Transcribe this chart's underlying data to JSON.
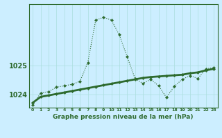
{
  "title": "Graphe pression niveau de la mer (hPa)",
  "background_color": "#cceeff",
  "line_color": "#2d6a2d",
  "ylabel_ticks": [
    1024,
    1025
  ],
  "xlim": [
    -0.5,
    23.5
  ],
  "ylim": [
    1023.55,
    1027.1
  ],
  "x": [
    0,
    1,
    2,
    3,
    4,
    5,
    6,
    7,
    8,
    9,
    10,
    11,
    12,
    13,
    14,
    15,
    16,
    17,
    18,
    19,
    20,
    21,
    22,
    23
  ],
  "y_main": [
    1023.65,
    1024.05,
    1024.1,
    1024.25,
    1024.3,
    1024.35,
    1024.45,
    1025.1,
    1026.55,
    1026.65,
    1026.55,
    1026.05,
    1025.3,
    1024.55,
    1024.38,
    1024.52,
    1024.3,
    1023.9,
    1024.28,
    1024.52,
    1024.65,
    1024.55,
    1024.88,
    1024.92
  ],
  "y_trend": [
    1023.72,
    1023.92,
    1023.97,
    1024.02,
    1024.07,
    1024.12,
    1024.17,
    1024.22,
    1024.27,
    1024.32,
    1024.37,
    1024.42,
    1024.47,
    1024.52,
    1024.57,
    1024.6,
    1024.62,
    1024.64,
    1024.66,
    1024.68,
    1024.73,
    1024.76,
    1024.83,
    1024.88
  ],
  "grid_color": "#aadddd",
  "main_lw": 0.8,
  "trend_lw": 2.0,
  "marker_size": 2.2,
  "xlabel_fontsize": 6.5,
  "ytick_fontsize": 7,
  "xtick_fontsize": 4.5
}
